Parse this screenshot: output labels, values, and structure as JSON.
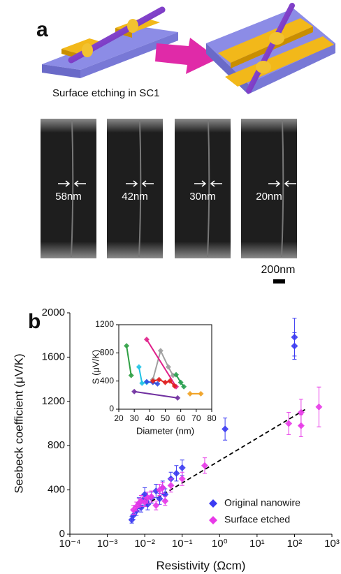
{
  "panel_a": {
    "label": "a",
    "caption": "Surface etching in SC1",
    "widths": [
      "58nm",
      "42nm",
      "30nm",
      "20nm"
    ],
    "scale_bar": "200nm"
  },
  "panel_b": {
    "label": "b"
  },
  "chart_data": [
    {
      "type": "scatter",
      "xlabel": "Resistivity (Ωcm)",
      "ylabel": "Seebeck coefficient (μV/K)",
      "xscale": "log",
      "xlim": [
        0.0001,
        1000
      ],
      "xticks": [
        {
          "value": 0.0001,
          "label": "10⁻⁴"
        },
        {
          "value": 0.001,
          "label": "10⁻³"
        },
        {
          "value": 0.01,
          "label": "10⁻²"
        },
        {
          "value": 0.1,
          "label": "10⁻¹"
        },
        {
          "value": 1,
          "label": "10⁰"
        },
        {
          "value": 10,
          "label": "10¹"
        },
        {
          "value": 100,
          "label": "10²"
        },
        {
          "value": 1000,
          "label": "10³"
        }
      ],
      "ylim": [
        0,
        2000
      ],
      "yticks": [
        0,
        400,
        800,
        1200,
        1600,
        2000
      ],
      "legend": "lower right",
      "series": [
        {
          "name": "Original nanowire",
          "color": "#3b3bf2",
          "x": [
            0.0045,
            0.005,
            0.006,
            0.007,
            0.008,
            0.009,
            0.01,
            0.011,
            0.012,
            0.015,
            0.02,
            0.025,
            0.03,
            0.035,
            0.05,
            0.07,
            0.1,
            1.4,
            100,
            100
          ],
          "values": [
            130,
            170,
            210,
            280,
            240,
            310,
            360,
            300,
            270,
            330,
            390,
            320,
            420,
            360,
            500,
            550,
            600,
            950,
            1700,
            1780
          ],
          "errors": [
            30,
            40,
            40,
            50,
            40,
            50,
            60,
            50,
            50,
            50,
            60,
            50,
            60,
            50,
            60,
            70,
            70,
            100,
            120,
            170
          ]
        },
        {
          "name": "Surface etched",
          "color": "#e83ae8",
          "x": [
            0.005,
            0.006,
            0.007,
            0.008,
            0.01,
            0.012,
            0.015,
            0.02,
            0.025,
            0.03,
            0.035,
            0.05,
            0.1,
            0.4,
            70,
            150,
            150,
            450
          ],
          "values": [
            220,
            250,
            280,
            300,
            290,
            330,
            340,
            260,
            400,
            420,
            300,
            440,
            500,
            620,
            1000,
            1100,
            980,
            1150
          ],
          "errors": [
            40,
            40,
            40,
            50,
            40,
            50,
            50,
            40,
            50,
            50,
            40,
            60,
            60,
            70,
            100,
            120,
            100,
            180
          ]
        }
      ],
      "trendline": {
        "x": [
          0.005,
          200
        ],
        "values": [
          200,
          1130
        ]
      }
    },
    {
      "type": "line",
      "xlabel": "Diameter (nm)",
      "ylabel": "S (μV/K)",
      "box": true,
      "xlim": [
        20,
        80
      ],
      "xticks": [
        20,
        30,
        40,
        50,
        60,
        70,
        80
      ],
      "ylim": [
        0,
        1200
      ],
      "yticks": [
        0,
        400,
        800,
        1200
      ],
      "series": [
        {
          "color": "#2ea043",
          "x": [
            25,
            28
          ],
          "values": [
            900,
            480
          ]
        },
        {
          "color": "#22c3e6",
          "x": [
            33,
            35,
            38
          ],
          "values": [
            600,
            370,
            380
          ]
        },
        {
          "color": "#7030a0",
          "x": [
            30,
            58
          ],
          "values": [
            250,
            160
          ]
        },
        {
          "color": "#2f4fe0",
          "x": [
            38,
            42,
            45
          ],
          "values": [
            390,
            380,
            360
          ]
        },
        {
          "color": "#a0a0a0",
          "x": [
            42,
            47,
            52,
            55
          ],
          "values": [
            420,
            830,
            600,
            480
          ]
        },
        {
          "color": "#e0208a",
          "x": [
            38,
            57
          ],
          "values": [
            990,
            320
          ]
        },
        {
          "color": "#e02020",
          "x": [
            42,
            46,
            50,
            53,
            56
          ],
          "values": [
            400,
            420,
            380,
            400,
            330
          ]
        },
        {
          "color": "#28a050",
          "x": [
            57,
            60,
            62
          ],
          "values": [
            490,
            380,
            320
          ]
        },
        {
          "color": "#f0a020",
          "x": [
            66,
            73
          ],
          "values": [
            220,
            220
          ]
        }
      ]
    }
  ]
}
